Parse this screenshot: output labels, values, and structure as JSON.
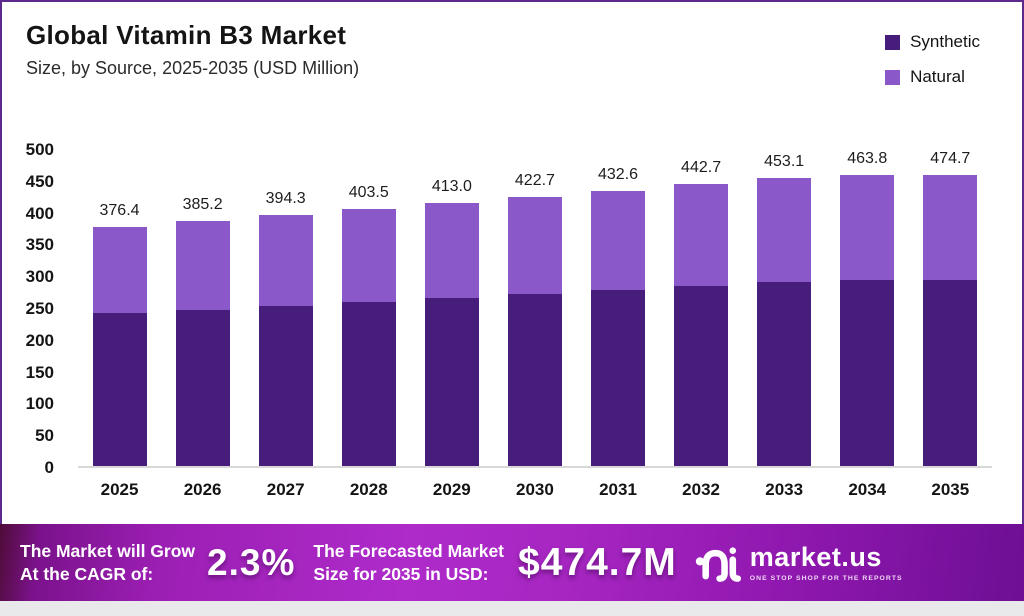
{
  "header": {
    "title": "Global Vitamin B3 Market",
    "subtitle": "Size, by Source, 2025-2035 (USD Million)"
  },
  "legend": [
    {
      "label": "Synthetic",
      "color": "#471d7c"
    },
    {
      "label": "Natural",
      "color": "#8a58c8"
    }
  ],
  "chart_data": {
    "type": "bar",
    "stacked": true,
    "title": "Global Vitamin B3 Market",
    "subtitle": "Size, by Source, 2025-2035 (USD Million)",
    "xlabel": "",
    "ylabel": "",
    "categories": [
      "2025",
      "2026",
      "2027",
      "2028",
      "2029",
      "2030",
      "2031",
      "2032",
      "2033",
      "2034",
      "2035"
    ],
    "totals": [
      376.4,
      385.2,
      394.3,
      403.5,
      413.0,
      422.7,
      432.6,
      442.7,
      453.1,
      463.8,
      474.7
    ],
    "total_labels": [
      "376.4",
      "385.2",
      "394.3",
      "403.5",
      "413.0",
      "422.7",
      "432.6",
      "442.7",
      "453.1",
      "463.8",
      "474.7"
    ],
    "series": [
      {
        "name": "Synthetic",
        "color": "#471d7c",
        "estimated_from_pixels": true,
        "values": [
          240.1,
          245.8,
          251.6,
          257.4,
          263.5,
          269.7,
          276.0,
          282.4,
          289.1,
          295.9,
          302.8
        ]
      },
      {
        "name": "Natural",
        "color": "#8a58c8",
        "estimated_from_pixels": true,
        "values": [
          136.3,
          139.4,
          142.7,
          146.1,
          149.5,
          153.0,
          156.6,
          160.3,
          164.0,
          167.9,
          171.9
        ]
      }
    ],
    "ylim": [
      0,
      500
    ],
    "yticks": [
      0,
      50,
      100,
      150,
      200,
      250,
      300,
      350,
      400,
      450,
      500
    ],
    "grid": false,
    "legend_position": "top-right"
  },
  "footer": {
    "cagr_label_line1": "The Market will Grow",
    "cagr_label_line2": "At the CAGR of:",
    "cagr_value": "2.3%",
    "forecast_label_line1": "The Forecasted Market",
    "forecast_label_line2": "Size for 2035 in USD:",
    "forecast_value": "$474.7M",
    "logo_name": "market.us",
    "logo_tagline": "ONE STOP SHOP FOR THE REPORTS"
  },
  "colors": {
    "card_border": "#5b2a8c",
    "axis_baseline": "#d8d8d8",
    "banner_main": "#a726c2",
    "text_dark": "#141414"
  }
}
